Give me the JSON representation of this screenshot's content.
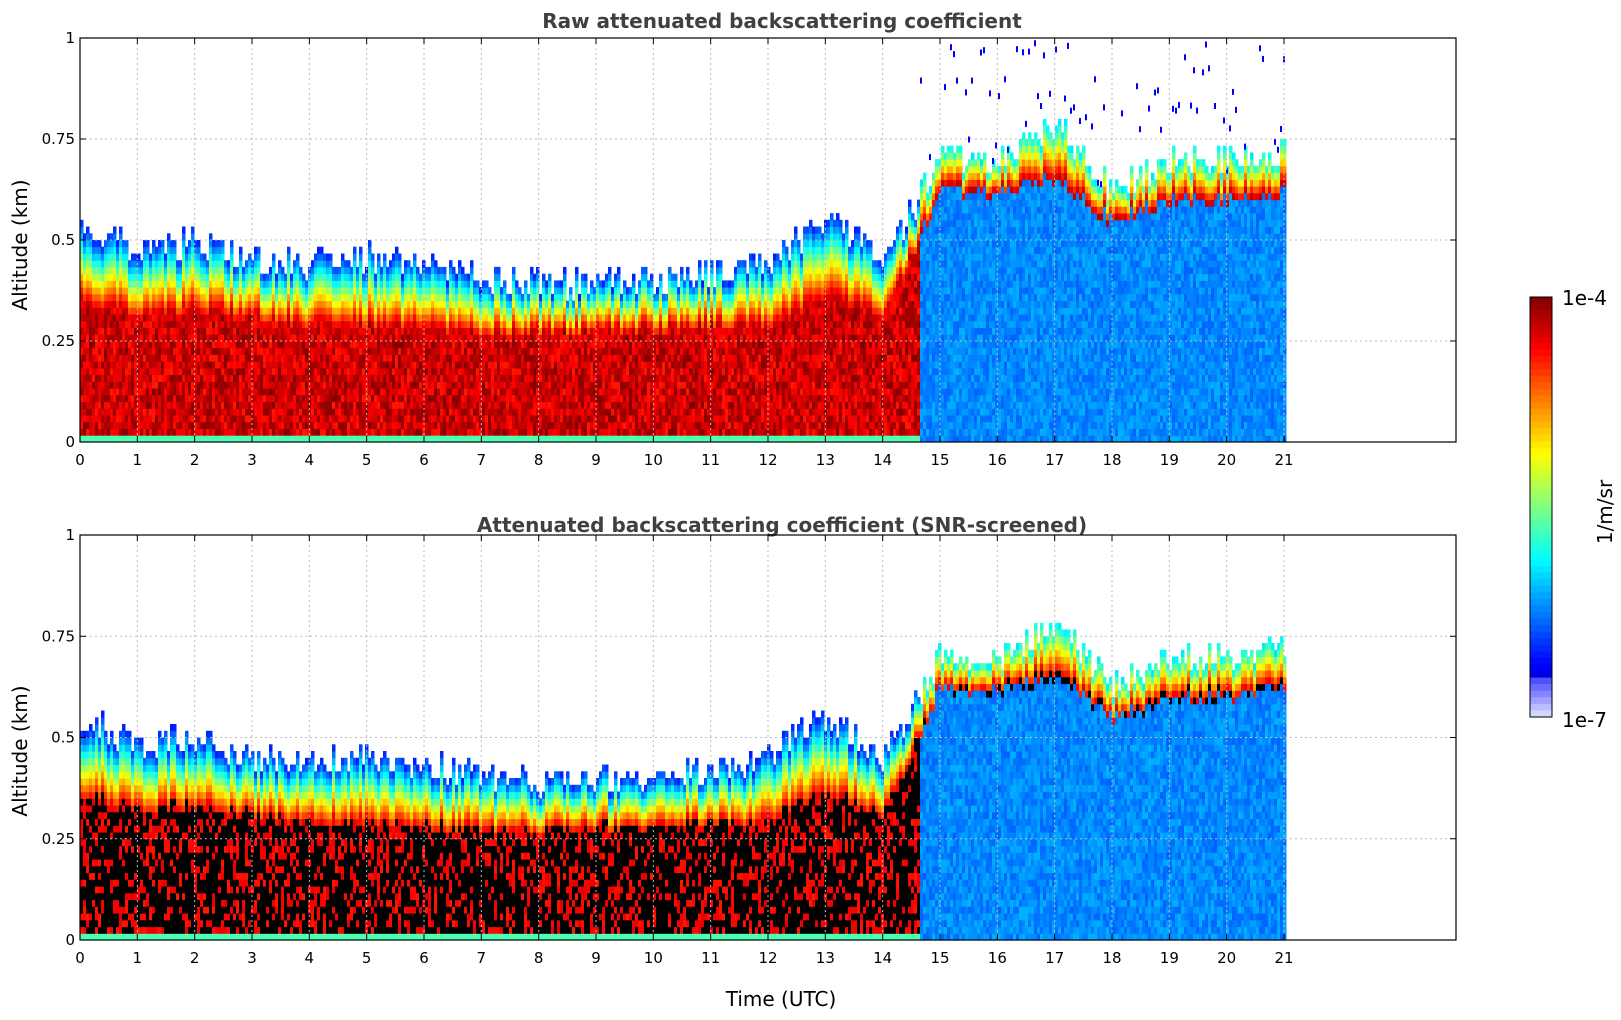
{
  "chart_data": [
    {
      "type": "heatmap",
      "title": "Raw attenuated backscattering coefficient",
      "xlabel": "",
      "ylabel": "Altitude (km)",
      "xlim": [
        0,
        24
      ],
      "ylim": [
        0,
        1
      ],
      "x_ticks": [
        "0",
        "1",
        "2",
        "3",
        "4",
        "5",
        "6",
        "7",
        "8",
        "9",
        "10",
        "11",
        "12",
        "13",
        "14",
        "15",
        "16",
        "17",
        "18",
        "19",
        "20",
        "21"
      ],
      "y_ticks": [
        "0",
        "0.25",
        "0.5",
        "0.75",
        "1"
      ],
      "grid": true,
      "data_extent_hours": [
        0,
        21
      ],
      "profiles": [
        {
          "t": 0,
          "top": 0.55,
          "core": 0.35
        },
        {
          "t": 1,
          "top": 0.47,
          "core": 0.3
        },
        {
          "t": 2,
          "top": 0.5,
          "core": 0.32
        },
        {
          "t": 3,
          "top": 0.45,
          "core": 0.3
        },
        {
          "t": 4,
          "top": 0.44,
          "core": 0.28
        },
        {
          "t": 5,
          "top": 0.46,
          "core": 0.28
        },
        {
          "t": 6,
          "top": 0.43,
          "core": 0.27
        },
        {
          "t": 7,
          "top": 0.41,
          "core": 0.26
        },
        {
          "t": 8,
          "top": 0.39,
          "core": 0.26
        },
        {
          "t": 9,
          "top": 0.4,
          "core": 0.27
        },
        {
          "t": 10,
          "top": 0.4,
          "core": 0.27
        },
        {
          "t": 11,
          "top": 0.42,
          "core": 0.28
        },
        {
          "t": 12,
          "top": 0.45,
          "core": 0.28
        },
        {
          "t": 13,
          "top": 0.55,
          "core": 0.35
        },
        {
          "t": 14,
          "top": 0.45,
          "core": 0.3
        },
        {
          "t": 15,
          "top": 0.7,
          "core": 0.62
        },
        {
          "t": 16,
          "top": 0.7,
          "core": 0.62
        },
        {
          "t": 17,
          "top": 0.78,
          "core": 0.65
        },
        {
          "t": 18,
          "top": 0.63,
          "core": 0.55
        },
        {
          "t": 19,
          "top": 0.7,
          "core": 0.6
        },
        {
          "t": 20,
          "top": 0.7,
          "core": 0.6
        },
        {
          "t": 21,
          "top": 0.72,
          "core": 0.62
        }
      ]
    },
    {
      "type": "heatmap",
      "title": "Attenuated backscattering coefficient (SNR-screened)",
      "xlabel": "Time (UTC)",
      "ylabel": "Altitude (km)",
      "xlim": [
        0,
        24
      ],
      "ylim": [
        0,
        1
      ],
      "x_ticks": [
        "0",
        "1",
        "2",
        "3",
        "4",
        "5",
        "6",
        "7",
        "8",
        "9",
        "10",
        "11",
        "12",
        "13",
        "14",
        "15",
        "16",
        "17",
        "18",
        "19",
        "20",
        "21"
      ],
      "y_ticks": [
        "0",
        "0.25",
        "0.5",
        "0.75",
        "1"
      ],
      "grid": true,
      "data_extent_hours": [
        0,
        21
      ],
      "profiles": [
        {
          "t": 0,
          "top": 0.55,
          "core": 0.35
        },
        {
          "t": 1,
          "top": 0.47,
          "core": 0.3
        },
        {
          "t": 2,
          "top": 0.5,
          "core": 0.32
        },
        {
          "t": 3,
          "top": 0.45,
          "core": 0.3
        },
        {
          "t": 4,
          "top": 0.44,
          "core": 0.28
        },
        {
          "t": 5,
          "top": 0.46,
          "core": 0.28
        },
        {
          "t": 6,
          "top": 0.43,
          "core": 0.27
        },
        {
          "t": 7,
          "top": 0.41,
          "core": 0.26
        },
        {
          "t": 8,
          "top": 0.39,
          "core": 0.26
        },
        {
          "t": 9,
          "top": 0.4,
          "core": 0.27
        },
        {
          "t": 10,
          "top": 0.4,
          "core": 0.27
        },
        {
          "t": 11,
          "top": 0.42,
          "core": 0.28
        },
        {
          "t": 12,
          "top": 0.45,
          "core": 0.28
        },
        {
          "t": 13,
          "top": 0.55,
          "core": 0.35
        },
        {
          "t": 14,
          "top": 0.45,
          "core": 0.3
        },
        {
          "t": 15,
          "top": 0.7,
          "core": 0.62
        },
        {
          "t": 16,
          "top": 0.7,
          "core": 0.62
        },
        {
          "t": 17,
          "top": 0.78,
          "core": 0.65
        },
        {
          "t": 18,
          "top": 0.63,
          "core": 0.55
        },
        {
          "t": 19,
          "top": 0.7,
          "core": 0.6
        },
        {
          "t": 20,
          "top": 0.7,
          "core": 0.6
        },
        {
          "t": 21,
          "top": 0.72,
          "core": 0.62
        }
      ]
    }
  ],
  "colorbar": {
    "label": "1/m/sr",
    "max_label": "1e-4",
    "min_label": "1e-7",
    "scale": "log",
    "colormap": "jet"
  }
}
